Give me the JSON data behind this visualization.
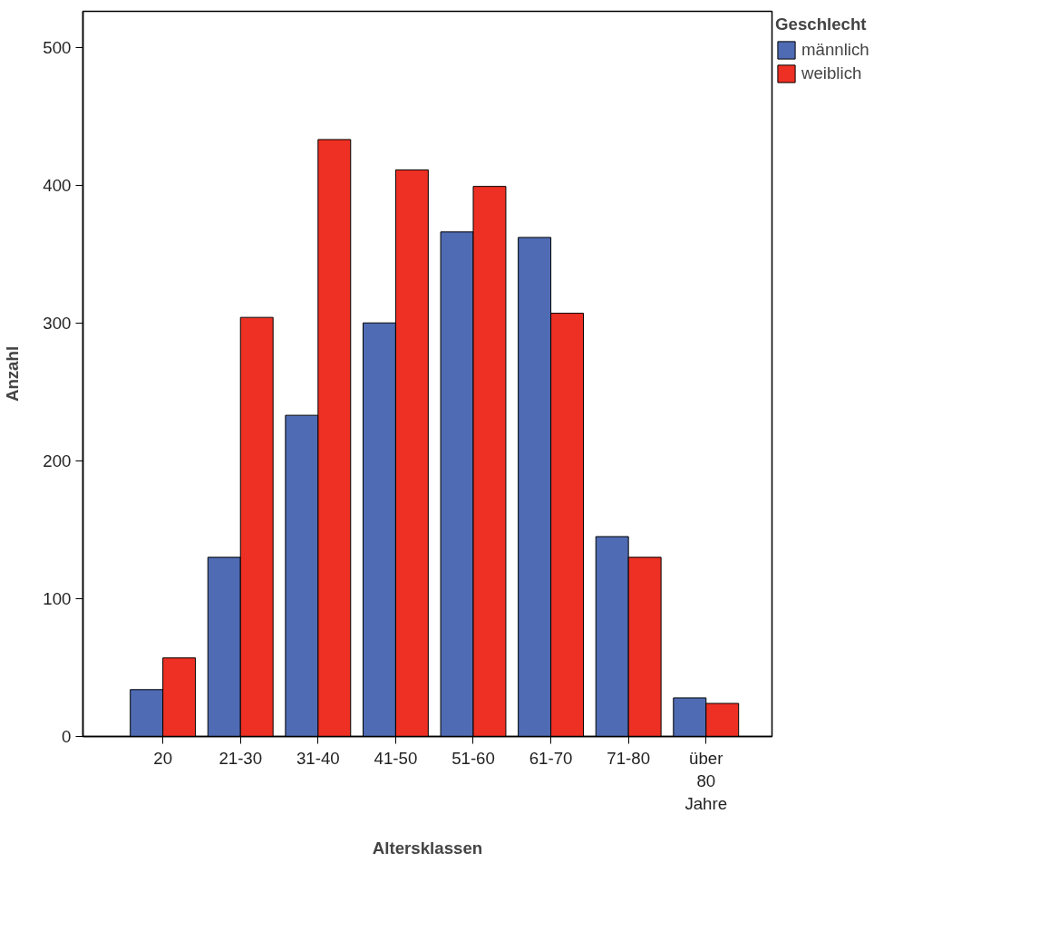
{
  "chart_data": {
    "type": "bar",
    "xlabel": "Altersklassen",
    "ylabel": "Anzahl",
    "legend_title": "Geschlecht",
    "categories": [
      "20",
      "21-30",
      "31-40",
      "41-50",
      "51-60",
      "61-70",
      "71-80",
      "über\n80\nJahre"
    ],
    "series": [
      {
        "name": "männlich",
        "color": "#4f6bb3",
        "values": [
          34,
          130,
          233,
          300,
          366,
          362,
          145,
          28
        ]
      },
      {
        "name": "weiblich",
        "color": "#ed3023",
        "values": [
          57,
          304,
          433,
          411,
          399,
          307,
          130,
          24
        ]
      }
    ],
    "ylim": [
      0,
      526
    ],
    "yticks": [
      0,
      100,
      200,
      300,
      400,
      500
    ],
    "grid": false,
    "legend": "top right"
  }
}
